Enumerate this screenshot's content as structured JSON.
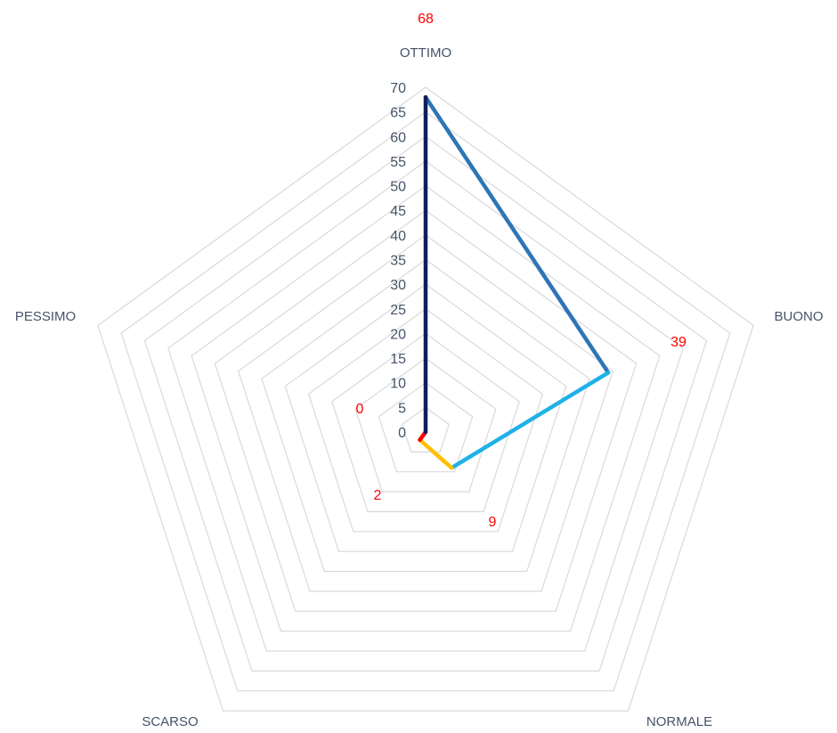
{
  "chart_data": {
    "type": "radar",
    "categories": [
      "OTTIMO",
      "BUONO",
      "NORMALE",
      "SCARSO",
      "PESSIMO"
    ],
    "values": [
      68,
      39,
      9,
      2,
      0
    ],
    "data_labels": [
      "68",
      "39",
      "9",
      "2",
      "0"
    ],
    "ylim": [
      0,
      70
    ],
    "ticks": [
      0,
      5,
      10,
      15,
      20,
      25,
      30,
      35,
      40,
      45,
      50,
      55,
      60,
      65,
      70
    ],
    "grid": true,
    "colors": {
      "grid": "#d9d9d9",
      "tick_text": "#44546a",
      "category_text": "#44546a",
      "data_label": "#ff0000",
      "segment_ottimo_buono": "#2e75b6",
      "segment_buono_normale": "#1fb1e8",
      "segment_normale_scarso": "#ffc000",
      "segment_scarso_pessimo": "#ff0000",
      "segment_pessimo_ottimo": "#0f1f5c"
    }
  }
}
